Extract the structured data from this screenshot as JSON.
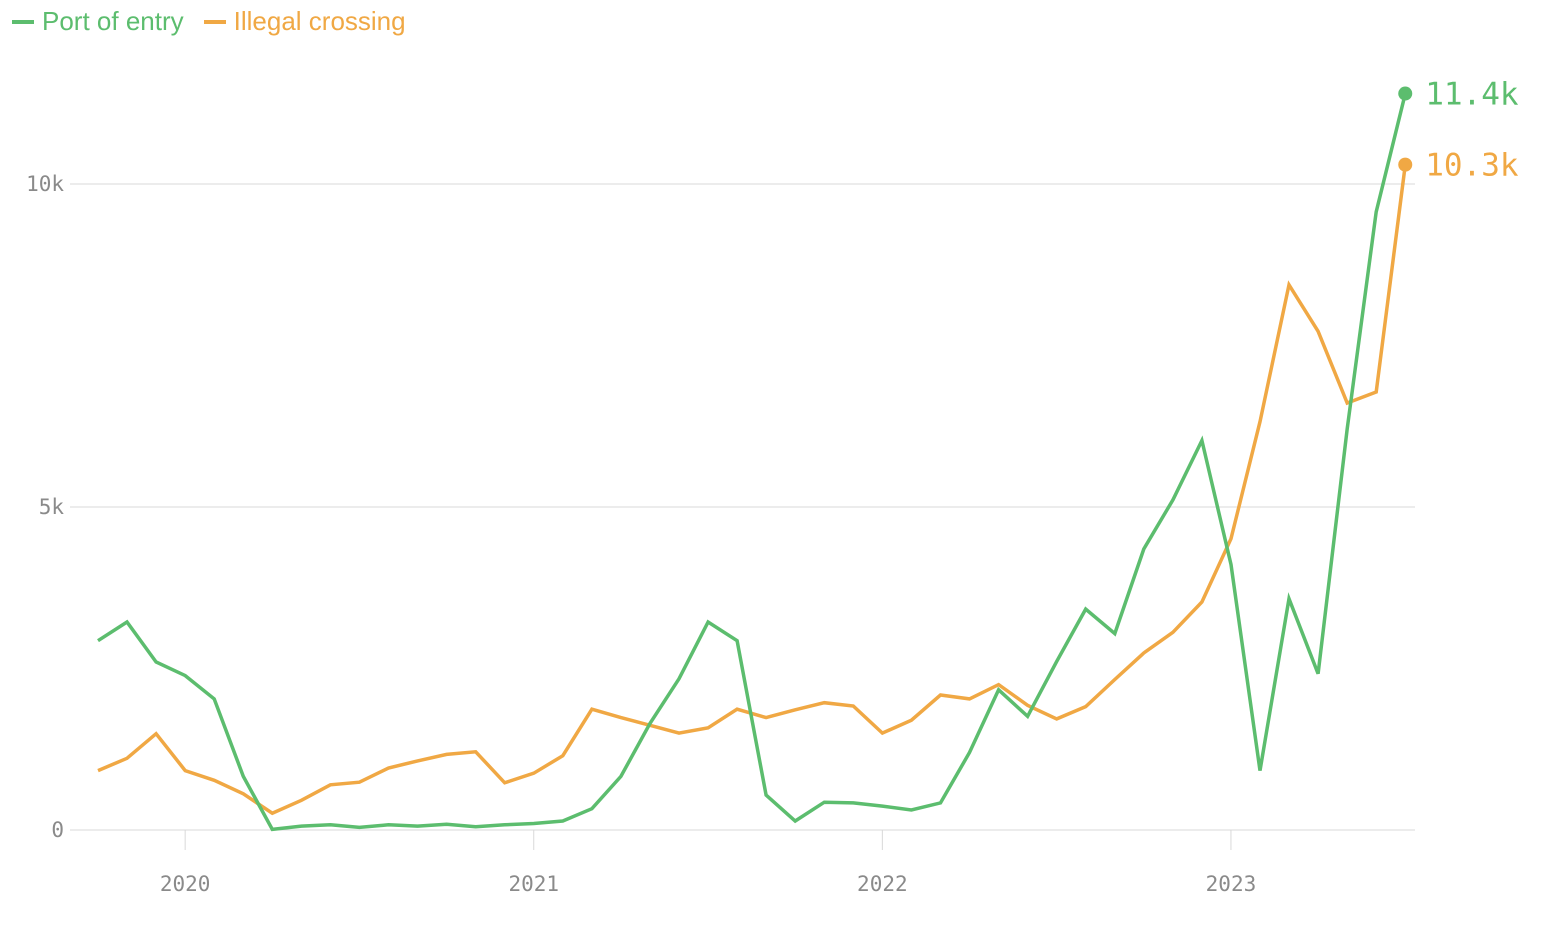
{
  "colors": {
    "port_of_entry": "#5cbd6e",
    "illegal_crossing": "#f0a844",
    "grid": "#d8d8d8",
    "axis_text": "#8a8a8a"
  },
  "legend": [
    {
      "label": "Port of entry",
      "color": "#5cbd6e"
    },
    {
      "label": "Illegal crossing",
      "color": "#f0a844"
    }
  ],
  "chart_data": {
    "type": "line",
    "title": "",
    "xlabel": "",
    "ylabel": "",
    "ylim": [
      0,
      11500
    ],
    "y_ticks": [
      {
        "value": 0,
        "label": "0"
      },
      {
        "value": 5000,
        "label": "5k"
      },
      {
        "value": 10000,
        "label": "10k"
      }
    ],
    "x_ticks": [
      "2020",
      "2021",
      "2022",
      "2023"
    ],
    "grid": true,
    "legend_position": "top-left",
    "x": [
      "2019-10",
      "2019-11",
      "2019-12",
      "2020-01",
      "2020-02",
      "2020-03",
      "2020-04",
      "2020-05",
      "2020-06",
      "2020-07",
      "2020-08",
      "2020-09",
      "2020-10",
      "2020-11",
      "2020-12",
      "2021-01",
      "2021-02",
      "2021-03",
      "2021-04",
      "2021-05",
      "2021-06",
      "2021-07",
      "2021-08",
      "2021-09",
      "2021-10",
      "2021-11",
      "2021-12",
      "2022-01",
      "2022-02",
      "2022-03",
      "2022-04",
      "2022-05",
      "2022-06",
      "2022-07",
      "2022-08",
      "2022-09",
      "2022-10",
      "2022-11",
      "2022-12",
      "2023-01",
      "2023-02",
      "2023-03",
      "2023-04",
      "2023-05",
      "2023-06",
      "2023-07"
    ],
    "series": [
      {
        "name": "Port of entry",
        "color": "#5cbd6e",
        "end_label": "11.4k",
        "values": [
          2930,
          3220,
          2600,
          2390,
          2030,
          830,
          10,
          60,
          80,
          40,
          80,
          60,
          90,
          50,
          80,
          100,
          140,
          330,
          830,
          1650,
          2340,
          3220,
          2930,
          540,
          140,
          430,
          420,
          370,
          310,
          420,
          1200,
          2170,
          1760,
          2610,
          3420,
          3040,
          4350,
          5110,
          6030,
          4110,
          920,
          3580,
          2420,
          6210,
          9570,
          11400
        ]
      },
      {
        "name": "Illegal crossing",
        "color": "#f0a844",
        "end_label": "10.3k",
        "values": [
          920,
          1110,
          1490,
          920,
          770,
          560,
          260,
          460,
          700,
          740,
          960,
          1070,
          1170,
          1210,
          730,
          880,
          1150,
          1870,
          1740,
          1620,
          1500,
          1580,
          1870,
          1740,
          1860,
          1970,
          1920,
          1500,
          1700,
          2090,
          2030,
          2250,
          1930,
          1720,
          1910,
          2330,
          2740,
          3060,
          3530,
          4510,
          6320,
          8440,
          7720,
          6610,
          6780,
          10300
        ]
      }
    ]
  }
}
